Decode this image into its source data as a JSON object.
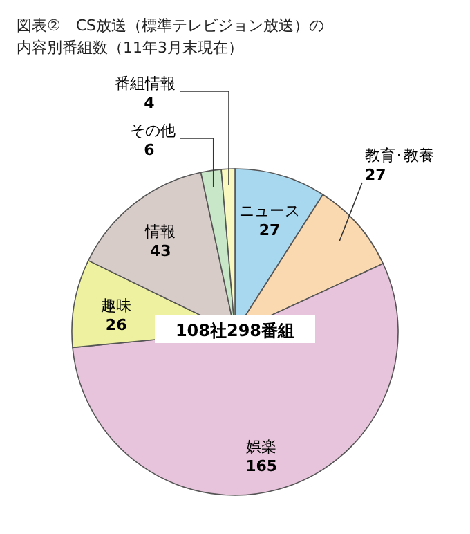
{
  "chart_data": {
    "type": "pie",
    "title": "図表②　CS放送（標準テレビジョン放送）の",
    "subtitle": "内容別番組数（11年3月末現在）",
    "categories": [
      "ニュース",
      "教育･教養",
      "娯楽",
      "趣味",
      "情報",
      "その他",
      "番組情報"
    ],
    "values": [
      27,
      27,
      165,
      26,
      43,
      6,
      4
    ],
    "colors": [
      "#a8d8f0",
      "#fbd9b0",
      "#e8c4dc",
      "#eef2a0",
      "#d8ccc8",
      "#c8e6c8",
      "#f8f8c0"
    ],
    "data_labels": true,
    "annotations": [
      "108社298番組"
    ]
  }
}
